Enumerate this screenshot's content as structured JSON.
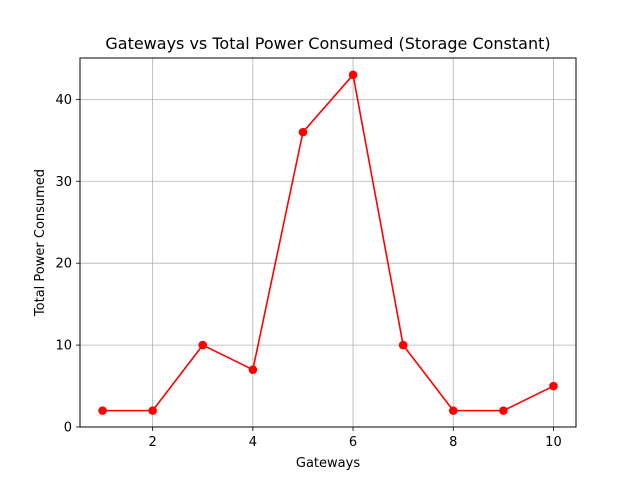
{
  "chart_data": {
    "type": "line",
    "title": "Gateways vs Total Power Consumed (Storage Constant)",
    "xlabel": "Gateways",
    "ylabel": "Total Power Consumed",
    "x": [
      1,
      2,
      3,
      4,
      5,
      6,
      7,
      8,
      9,
      10
    ],
    "series": [
      {
        "values": [
          2,
          2,
          10,
          7,
          36,
          43,
          10,
          2,
          2,
          5
        ],
        "color": "#ff0000",
        "marker": "circle"
      }
    ],
    "xlim": [
      0.55,
      10.45
    ],
    "ylim": [
      0,
      45.05
    ],
    "xticks": [
      2,
      4,
      6,
      8,
      10
    ],
    "yticks": [
      0,
      10,
      20,
      30,
      40
    ],
    "grid": true
  }
}
